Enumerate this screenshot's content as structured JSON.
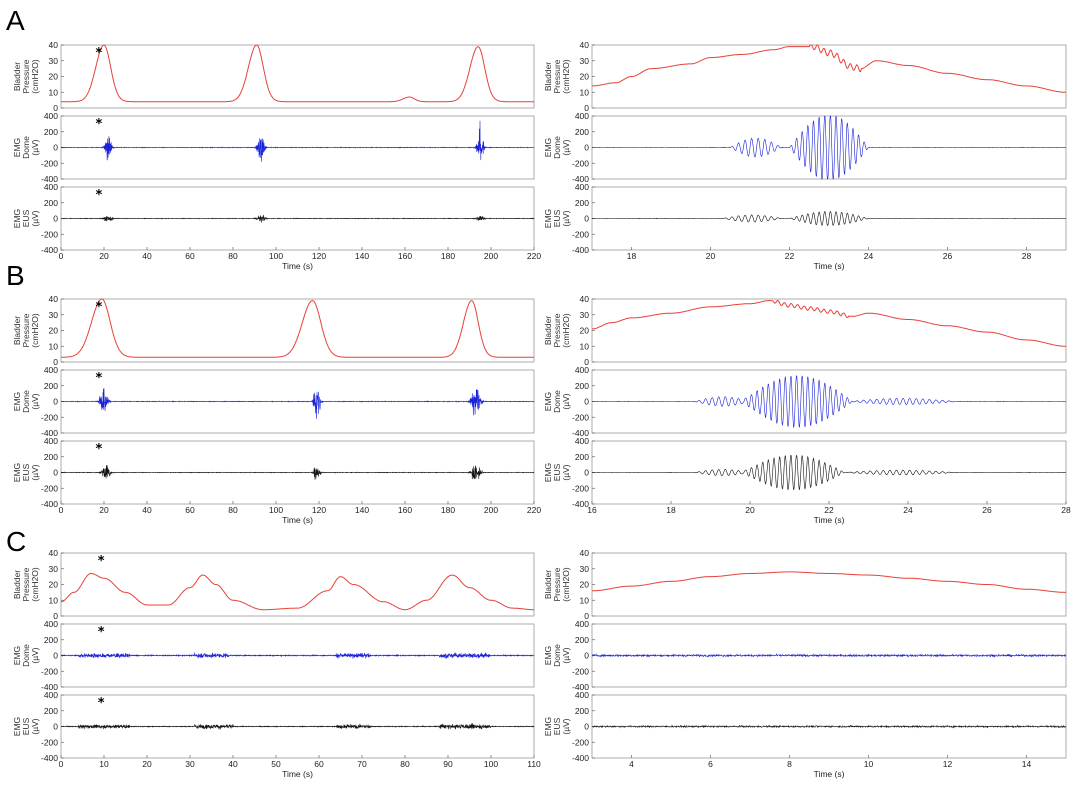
{
  "panel_letters": [
    "A",
    "B",
    "C"
  ],
  "colors": {
    "pressure": "#e8413a",
    "emg_dome": "#1a22d8",
    "emg_eus": "#111111"
  },
  "chart_data": [
    {
      "type": "line",
      "panel": "A",
      "column": "left",
      "xlabel": "Time (s)",
      "xlim": [
        0,
        220
      ],
      "xticks": [
        0,
        20,
        40,
        60,
        80,
        100,
        120,
        140,
        160,
        180,
        200,
        220
      ],
      "star_x": 13,
      "rows": [
        {
          "channel": "pressure",
          "ylabel": [
            "Bladder",
            "Pressure",
            "(cmH2O)"
          ],
          "ylim": [
            0,
            40
          ],
          "yticks": [
            0,
            10,
            20,
            30,
            40
          ],
          "baseline": 4,
          "events": [
            {
              "t": 20,
              "peak": 40,
              "w": 4
            },
            {
              "t": 91,
              "peak": 40,
              "w": 4
            },
            {
              "t": 194,
              "peak": 39,
              "w": 4
            },
            {
              "t": 162,
              "peak": 7,
              "w": 3
            }
          ]
        },
        {
          "channel": "emg_dome",
          "ylabel": [
            "EMG",
            "Dome",
            "(µV)"
          ],
          "ylim": [
            -400,
            400
          ],
          "yticks": [
            -400,
            -200,
            0,
            200,
            400
          ],
          "noise": 6,
          "bursts": [
            {
              "t": 22,
              "amp": 330,
              "w": 1.5
            },
            {
              "t": 93,
              "amp": 380,
              "w": 1.5
            },
            {
              "t": 195,
              "amp": 360,
              "w": 1.5
            }
          ]
        },
        {
          "channel": "emg_eus",
          "ylabel": [
            "EMG",
            "EUS",
            "(µV)"
          ],
          "ylim": [
            -400,
            400
          ],
          "yticks": [
            -400,
            -200,
            0,
            200,
            400
          ],
          "noise": 5,
          "bursts": [
            {
              "t": 22,
              "amp": 70,
              "w": 2
            },
            {
              "t": 93,
              "amp": 70,
              "w": 2
            },
            {
              "t": 195,
              "amp": 70,
              "w": 2
            }
          ]
        }
      ]
    },
    {
      "type": "line",
      "panel": "A",
      "column": "right",
      "xlabel": "Time (s)",
      "xlim": [
        17,
        29
      ],
      "xticks": [
        18,
        20,
        22,
        24,
        26,
        28
      ],
      "rows": [
        {
          "channel": "pressure",
          "ylabel": [
            "Bladder",
            "Pressure",
            "(cmH2O)"
          ],
          "ylim": [
            0,
            40
          ],
          "yticks": [
            0,
            10,
            20,
            30,
            40
          ],
          "points": [
            [
              17,
              14
            ],
            [
              17.6,
              16
            ],
            [
              18,
              20
            ],
            [
              18.5,
              25
            ],
            [
              19.5,
              28
            ],
            [
              20,
              32
            ],
            [
              20.8,
              34
            ],
            [
              21.6,
              37
            ],
            [
              22,
              39
            ],
            [
              22.6,
              39
            ],
            [
              23,
              35
            ],
            [
              23.6,
              26
            ],
            [
              23.8,
              25
            ],
            [
              24.2,
              30
            ],
            [
              25,
              27
            ],
            [
              26,
              22
            ],
            [
              27,
              18
            ],
            [
              28,
              14
            ],
            [
              29,
              10
            ]
          ],
          "oscillations": [
            {
              "t0": 22.5,
              "t1": 23.8,
              "amp": 2,
              "freq": 6
            }
          ]
        },
        {
          "channel": "emg_dome",
          "ylabel": [
            "EMG",
            "Dome",
            "(µV)"
          ],
          "ylim": [
            -400,
            400
          ],
          "yticks": [
            -400,
            -200,
            0,
            200,
            400
          ],
          "noise": 4,
          "waves": [
            {
              "t0": 20.5,
              "t1": 21.8,
              "amp": 120,
              "freq": 6
            },
            {
              "t0": 22.0,
              "t1": 24.0,
              "amp": 420,
              "freq": 7
            }
          ]
        },
        {
          "channel": "emg_eus",
          "ylabel": [
            "EMG",
            "EUS",
            "(µV)"
          ],
          "ylim": [
            -400,
            400
          ],
          "yticks": [
            -400,
            -200,
            0,
            200,
            400
          ],
          "noise": 3,
          "waves": [
            {
              "t0": 20.3,
              "t1": 21.8,
              "amp": 45,
              "freq": 6
            },
            {
              "t0": 22.0,
              "t1": 24.0,
              "amp": 90,
              "freq": 7
            }
          ]
        }
      ]
    },
    {
      "type": "line",
      "panel": "B",
      "column": "left",
      "xlabel": "Time (s)",
      "xlim": [
        0,
        220
      ],
      "xticks": [
        0,
        20,
        40,
        60,
        80,
        100,
        120,
        140,
        160,
        180,
        200,
        220
      ],
      "star_x": 13,
      "rows": [
        {
          "channel": "pressure",
          "ylabel": [
            "Bladder",
            "Pressure",
            "(cmH2O)"
          ],
          "ylim": [
            0,
            40
          ],
          "yticks": [
            0,
            10,
            20,
            30,
            40
          ],
          "baseline": 3,
          "events": [
            {
              "t": 19,
              "peak": 40,
              "w": 5
            },
            {
              "t": 117,
              "peak": 39,
              "w": 5
            },
            {
              "t": 191,
              "peak": 39,
              "w": 4
            }
          ]
        },
        {
          "channel": "emg_dome",
          "ylabel": [
            "EMG",
            "Dome",
            "(µV)"
          ],
          "ylim": [
            -400,
            400
          ],
          "yticks": [
            -400,
            -200,
            0,
            200,
            400
          ],
          "noise": 6,
          "bursts": [
            {
              "t": 20,
              "amp": 300,
              "w": 1.8
            },
            {
              "t": 119,
              "amp": 330,
              "w": 1.5
            },
            {
              "t": 193,
              "amp": 340,
              "w": 2
            }
          ]
        },
        {
          "channel": "emg_eus",
          "ylabel": [
            "EMG",
            "EUS",
            "(µV)"
          ],
          "ylim": [
            -400,
            400
          ],
          "yticks": [
            -400,
            -200,
            0,
            200,
            400
          ],
          "noise": 5,
          "bursts": [
            {
              "t": 21,
              "amp": 180,
              "w": 1.8
            },
            {
              "t": 119,
              "amp": 170,
              "w": 1.5
            },
            {
              "t": 193,
              "amp": 200,
              "w": 2
            }
          ]
        }
      ]
    },
    {
      "type": "line",
      "panel": "B",
      "column": "right",
      "xlabel": "Time (s)",
      "xlim": [
        16,
        28
      ],
      "xticks": [
        16,
        18,
        20,
        22,
        24,
        26,
        28
      ],
      "rows": [
        {
          "channel": "pressure",
          "ylabel": [
            "Bladder",
            "Pressure",
            "(cmH2O)"
          ],
          "ylim": [
            0,
            40
          ],
          "yticks": [
            0,
            10,
            20,
            30,
            40
          ],
          "points": [
            [
              16,
              21
            ],
            [
              16.5,
              25
            ],
            [
              17,
              28
            ],
            [
              18,
              31
            ],
            [
              19,
              35
            ],
            [
              20,
              37
            ],
            [
              20.5,
              39
            ],
            [
              21,
              36
            ],
            [
              21.5,
              34
            ],
            [
              22,
              32
            ],
            [
              22.6,
              29
            ],
            [
              23,
              31
            ],
            [
              24,
              27
            ],
            [
              25,
              23
            ],
            [
              26,
              19
            ],
            [
              27,
              14
            ],
            [
              28,
              10
            ]
          ],
          "oscillations": [
            {
              "t0": 20.6,
              "t1": 22.5,
              "amp": 1.2,
              "freq": 6
            }
          ]
        },
        {
          "channel": "emg_dome",
          "ylabel": [
            "EMG",
            "Dome",
            "(µV)"
          ],
          "ylim": [
            -400,
            400
          ],
          "yticks": [
            -400,
            -200,
            0,
            200,
            400
          ],
          "noise": 4,
          "waves": [
            {
              "t0": 18.6,
              "t1": 20.0,
              "amp": 60,
              "freq": 6
            },
            {
              "t0": 19.8,
              "t1": 22.6,
              "amp": 330,
              "freq": 7
            },
            {
              "t0": 22.5,
              "t1": 25.2,
              "amp": 40,
              "freq": 6
            }
          ]
        },
        {
          "channel": "emg_eus",
          "ylabel": [
            "EMG",
            "EUS",
            "(µV)"
          ],
          "ylim": [
            -400,
            400
          ],
          "yticks": [
            -400,
            -200,
            0,
            200,
            400
          ],
          "noise": 3,
          "waves": [
            {
              "t0": 18.6,
              "t1": 20.0,
              "amp": 40,
              "freq": 6
            },
            {
              "t0": 19.8,
              "t1": 22.4,
              "amp": 220,
              "freq": 7
            },
            {
              "t0": 22.4,
              "t1": 25.2,
              "amp": 30,
              "freq": 6
            }
          ]
        }
      ]
    },
    {
      "type": "line",
      "panel": "C",
      "column": "left",
      "xlabel": "Time (s)",
      "xlim": [
        0,
        110
      ],
      "xticks": [
        0,
        10,
        20,
        30,
        40,
        50,
        60,
        70,
        80,
        90,
        100,
        110
      ],
      "star_x": 7,
      "rows": [
        {
          "channel": "pressure",
          "ylabel": [
            "Bladder",
            "Pressure",
            "(cmH2O)"
          ],
          "ylim": [
            0,
            40
          ],
          "yticks": [
            0,
            10,
            20,
            30,
            40
          ],
          "points": [
            [
              0,
              9
            ],
            [
              3,
              15
            ],
            [
              7,
              27
            ],
            [
              10,
              24
            ],
            [
              15,
              15
            ],
            [
              20,
              7
            ],
            [
              25,
              7
            ],
            [
              30,
              18
            ],
            [
              33,
              26
            ],
            [
              36,
              20
            ],
            [
              40,
              10
            ],
            [
              47,
              4
            ],
            [
              55,
              5
            ],
            [
              62,
              16
            ],
            [
              65,
              25
            ],
            [
              68,
              20
            ],
            [
              75,
              9
            ],
            [
              80,
              4
            ],
            [
              85,
              10
            ],
            [
              91,
              26
            ],
            [
              95,
              18
            ],
            [
              100,
              10
            ],
            [
              105,
              5
            ],
            [
              110,
              4
            ]
          ]
        },
        {
          "channel": "emg_dome",
          "ylabel": [
            "EMG",
            "Dome",
            "(µV)"
          ],
          "ylim": [
            -400,
            400
          ],
          "yticks": [
            -400,
            -200,
            0,
            200,
            400
          ],
          "noise": 10,
          "segments": [
            {
              "t0": 4,
              "t1": 16,
              "amp": 45
            },
            {
              "t0": 31,
              "t1": 39,
              "amp": 50
            },
            {
              "t0": 64,
              "t1": 72,
              "amp": 50
            },
            {
              "t0": 88,
              "t1": 100,
              "amp": 50
            }
          ]
        },
        {
          "channel": "emg_eus",
          "ylabel": [
            "EMG",
            "EUS",
            "(µV)"
          ],
          "ylim": [
            -400,
            400
          ],
          "yticks": [
            -400,
            -200,
            0,
            200,
            400
          ],
          "noise": 8,
          "segments": [
            {
              "t0": 4,
              "t1": 16,
              "amp": 40
            },
            {
              "t0": 31,
              "t1": 40,
              "amp": 45
            },
            {
              "t0": 64,
              "t1": 72,
              "amp": 45
            },
            {
              "t0": 88,
              "t1": 100,
              "amp": 50
            }
          ]
        }
      ]
    },
    {
      "type": "line",
      "panel": "C",
      "column": "right",
      "xlabel": "Time (s)",
      "xlim": [
        3,
        15
      ],
      "xticks": [
        4,
        6,
        8,
        10,
        12,
        14
      ],
      "rows": [
        {
          "channel": "pressure",
          "ylabel": [
            "Bladder",
            "Pressure",
            "(cmH2O)"
          ],
          "ylim": [
            0,
            40
          ],
          "yticks": [
            0,
            10,
            20,
            30,
            40
          ],
          "points": [
            [
              3,
              16
            ],
            [
              4,
              19
            ],
            [
              5,
              22
            ],
            [
              6,
              25
            ],
            [
              7,
              27
            ],
            [
              8,
              28
            ],
            [
              9,
              27
            ],
            [
              10,
              26
            ],
            [
              11,
              24
            ],
            [
              12,
              22
            ],
            [
              13,
              20
            ],
            [
              14,
              17
            ],
            [
              15,
              15
            ]
          ]
        },
        {
          "channel": "emg_dome",
          "ylabel": [
            "EMG",
            "Dome",
            "(µV)"
          ],
          "ylim": [
            -400,
            400
          ],
          "yticks": [
            -400,
            -200,
            0,
            200,
            400
          ],
          "noise": 22
        },
        {
          "channel": "emg_eus",
          "ylabel": [
            "EMG",
            "EUS",
            "(µV)"
          ],
          "ylim": [
            -400,
            400
          ],
          "yticks": [
            -400,
            -200,
            0,
            200,
            400
          ],
          "noise": 18
        }
      ]
    }
  ]
}
